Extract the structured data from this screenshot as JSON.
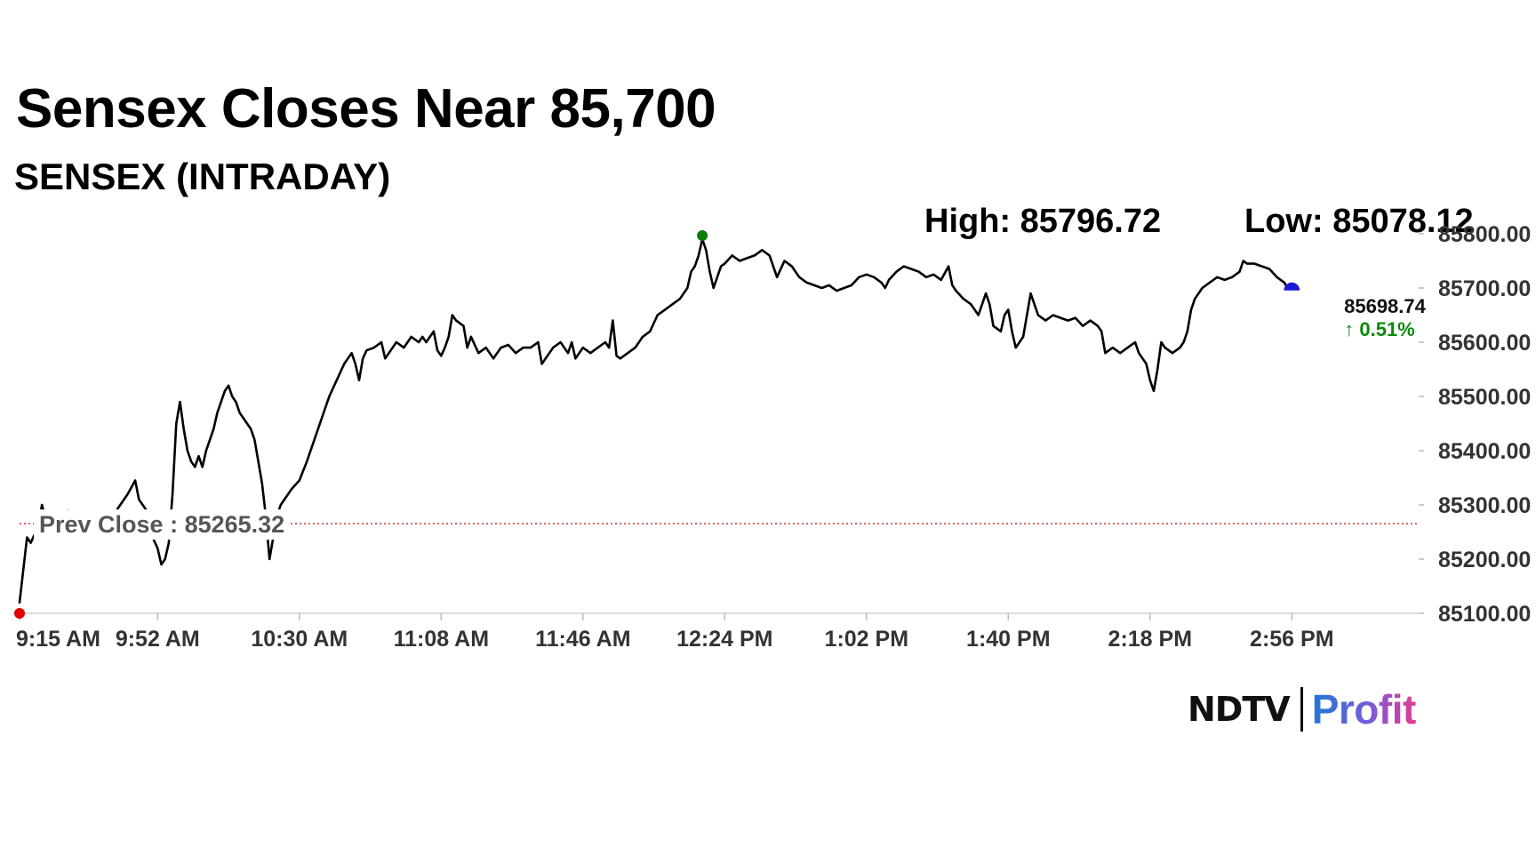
{
  "header": {
    "title": "Sensex Closes Near 85,700",
    "subtitle": "SENSEX (INTRADAY)",
    "high_label": "High: 85796.72",
    "low_label": "Low: 85078.12"
  },
  "logo": {
    "brand": "NDTV",
    "product": "Profit"
  },
  "chart_data": {
    "type": "line",
    "x_tick_labels": [
      "9:15 AM",
      "9:52 AM",
      "10:30 AM",
      "11:08 AM",
      "11:46 AM",
      "12:24 PM",
      "1:02 PM",
      "1:40 PM",
      "2:18 PM",
      "2:56 PM"
    ],
    "x_tick_minutes": [
      555,
      592,
      630,
      668,
      706,
      744,
      782,
      820,
      858,
      896
    ],
    "x_range_minutes": [
      555,
      930
    ],
    "ylim": [
      85100,
      85800
    ],
    "y_tick_values": [
      85100,
      85200,
      85300,
      85400,
      85500,
      85600,
      85700,
      85800
    ],
    "y_tick_labels": [
      "85100.00",
      "85200.00",
      "85300.00",
      "85400.00",
      "85500.00",
      "85600.00",
      "85700.00",
      "85800.00"
    ],
    "prev_close": 85265.32,
    "prev_close_label": "Prev Close : 85265.32",
    "last_value_label": "85698.74",
    "change_label": "↑ 0.51%",
    "series": [
      {
        "values": [
          [
            555,
            85120
          ],
          [
            556,
            85180
          ],
          [
            557,
            85240
          ],
          [
            558,
            85230
          ],
          [
            560,
            85260
          ],
          [
            561,
            85300
          ],
          [
            562,
            85275
          ],
          [
            564,
            85250
          ],
          [
            566,
            85262
          ],
          [
            568,
            85290
          ],
          [
            570,
            85270
          ],
          [
            572,
            85265
          ],
          [
            574,
            85285
          ],
          [
            576,
            85270
          ],
          [
            578,
            85260
          ],
          [
            580,
            85280
          ],
          [
            582,
            85300
          ],
          [
            584,
            85320
          ],
          [
            586,
            85345
          ],
          [
            587,
            85310
          ],
          [
            589,
            85290
          ],
          [
            590,
            85250
          ],
          [
            592,
            85220
          ],
          [
            593,
            85190
          ],
          [
            594,
            85200
          ],
          [
            595,
            85230
          ],
          [
            596,
            85320
          ],
          [
            597,
            85450
          ],
          [
            598,
            85490
          ],
          [
            599,
            85440
          ],
          [
            600,
            85400
          ],
          [
            601,
            85380
          ],
          [
            602,
            85370
          ],
          [
            603,
            85390
          ],
          [
            604,
            85370
          ],
          [
            605,
            85400
          ],
          [
            606,
            85420
          ],
          [
            607,
            85440
          ],
          [
            608,
            85470
          ],
          [
            609,
            85490
          ],
          [
            610,
            85510
          ],
          [
            611,
            85520
          ],
          [
            612,
            85500
          ],
          [
            613,
            85490
          ],
          [
            614,
            85470
          ],
          [
            615,
            85460
          ],
          [
            616,
            85450
          ],
          [
            617,
            85440
          ],
          [
            618,
            85420
          ],
          [
            619,
            85380
          ],
          [
            620,
            85340
          ],
          [
            621,
            85280
          ],
          [
            622,
            85200
          ],
          [
            623,
            85240
          ],
          [
            624,
            85280
          ],
          [
            625,
            85300
          ],
          [
            626,
            85310
          ],
          [
            627,
            85320
          ],
          [
            628,
            85330
          ],
          [
            630,
            85345
          ],
          [
            632,
            85380
          ],
          [
            634,
            85420
          ],
          [
            636,
            85460
          ],
          [
            638,
            85500
          ],
          [
            640,
            85530
          ],
          [
            642,
            85560
          ],
          [
            644,
            85580
          ],
          [
            645,
            85560
          ],
          [
            646,
            85530
          ],
          [
            647,
            85570
          ],
          [
            648,
            85585
          ],
          [
            650,
            85590
          ],
          [
            652,
            85600
          ],
          [
            653,
            85570
          ],
          [
            654,
            85580
          ],
          [
            656,
            85600
          ],
          [
            658,
            85590
          ],
          [
            660,
            85610
          ],
          [
            662,
            85600
          ],
          [
            663,
            85610
          ],
          [
            664,
            85600
          ],
          [
            666,
            85620
          ],
          [
            667,
            85585
          ],
          [
            668,
            85575
          ],
          [
            669,
            85590
          ],
          [
            670,
            85610
          ],
          [
            671,
            85650
          ],
          [
            672,
            85640
          ],
          [
            674,
            85630
          ],
          [
            675,
            85590
          ],
          [
            676,
            85610
          ],
          [
            678,
            85580
          ],
          [
            680,
            85590
          ],
          [
            682,
            85570
          ],
          [
            684,
            85590
          ],
          [
            686,
            85595
          ],
          [
            688,
            85580
          ],
          [
            690,
            85590
          ],
          [
            692,
            85590
          ],
          [
            694,
            85600
          ],
          [
            695,
            85560
          ],
          [
            696,
            85570
          ],
          [
            698,
            85590
          ],
          [
            700,
            85600
          ],
          [
            702,
            85580
          ],
          [
            703,
            85600
          ],
          [
            704,
            85570
          ],
          [
            706,
            85590
          ],
          [
            708,
            85580
          ],
          [
            710,
            85590
          ],
          [
            712,
            85600
          ],
          [
            713,
            85590
          ],
          [
            714,
            85640
          ],
          [
            715,
            85575
          ],
          [
            716,
            85570
          ],
          [
            718,
            85580
          ],
          [
            720,
            85590
          ],
          [
            722,
            85610
          ],
          [
            724,
            85620
          ],
          [
            726,
            85650
          ],
          [
            728,
            85660
          ],
          [
            730,
            85670
          ],
          [
            732,
            85680
          ],
          [
            734,
            85700
          ],
          [
            735,
            85730
          ],
          [
            736,
            85740
          ],
          [
            737,
            85760
          ],
          [
            738,
            85790
          ],
          [
            739,
            85770
          ],
          [
            740,
            85730
          ],
          [
            741,
            85700
          ],
          [
            742,
            85720
          ],
          [
            743,
            85740
          ],
          [
            744,
            85745
          ],
          [
            746,
            85760
          ],
          [
            748,
            85750
          ],
          [
            750,
            85755
          ],
          [
            752,
            85760
          ],
          [
            754,
            85770
          ],
          [
            756,
            85760
          ],
          [
            757,
            85740
          ],
          [
            758,
            85720
          ],
          [
            760,
            85750
          ],
          [
            762,
            85740
          ],
          [
            764,
            85720
          ],
          [
            766,
            85710
          ],
          [
            768,
            85705
          ],
          [
            770,
            85700
          ],
          [
            772,
            85705
          ],
          [
            774,
            85695
          ],
          [
            776,
            85700
          ],
          [
            778,
            85705
          ],
          [
            780,
            85720
          ],
          [
            782,
            85725
          ],
          [
            784,
            85720
          ],
          [
            786,
            85710
          ],
          [
            787,
            85700
          ],
          [
            788,
            85715
          ],
          [
            790,
            85730
          ],
          [
            792,
            85740
          ],
          [
            794,
            85735
          ],
          [
            796,
            85730
          ],
          [
            798,
            85720
          ],
          [
            800,
            85725
          ],
          [
            802,
            85715
          ],
          [
            804,
            85740
          ],
          [
            805,
            85705
          ],
          [
            806,
            85695
          ],
          [
            808,
            85680
          ],
          [
            810,
            85670
          ],
          [
            812,
            85650
          ],
          [
            814,
            85690
          ],
          [
            815,
            85670
          ],
          [
            816,
            85630
          ],
          [
            818,
            85620
          ],
          [
            819,
            85650
          ],
          [
            820,
            85660
          ],
          [
            821,
            85620
          ],
          [
            822,
            85590
          ],
          [
            824,
            85610
          ],
          [
            826,
            85690
          ],
          [
            827,
            85670
          ],
          [
            828,
            85650
          ],
          [
            830,
            85640
          ],
          [
            832,
            85650
          ],
          [
            834,
            85645
          ],
          [
            836,
            85640
          ],
          [
            838,
            85645
          ],
          [
            840,
            85630
          ],
          [
            842,
            85640
          ],
          [
            844,
            85630
          ],
          [
            845,
            85620
          ],
          [
            846,
            85580
          ],
          [
            848,
            85590
          ],
          [
            850,
            85580
          ],
          [
            852,
            85590
          ],
          [
            854,
            85600
          ],
          [
            855,
            85580
          ],
          [
            856,
            85570
          ],
          [
            857,
            85560
          ],
          [
            858,
            85530
          ],
          [
            859,
            85510
          ],
          [
            860,
            85550
          ],
          [
            861,
            85600
          ],
          [
            862,
            85590
          ],
          [
            864,
            85580
          ],
          [
            866,
            85590
          ],
          [
            867,
            85600
          ],
          [
            868,
            85620
          ],
          [
            869,
            85660
          ],
          [
            870,
            85680
          ],
          [
            872,
            85700
          ],
          [
            874,
            85710
          ],
          [
            876,
            85720
          ],
          [
            878,
            85715
          ],
          [
            880,
            85720
          ],
          [
            882,
            85730
          ],
          [
            883,
            85750
          ],
          [
            884,
            85745
          ],
          [
            886,
            85745
          ],
          [
            888,
            85740
          ],
          [
            890,
            85735
          ],
          [
            892,
            85720
          ],
          [
            894,
            85710
          ],
          [
            895,
            85698
          ],
          [
            896,
            85700
          ]
        ]
      }
    ],
    "markers": {
      "open": [
        555,
        85100
      ],
      "high": [
        738,
        85796.72
      ],
      "close": [
        896,
        85698.74
      ]
    },
    "colors": {
      "line": "#000000",
      "open_marker": "#e00000",
      "high_marker": "#0a7d0a",
      "close_marker": "#1a1ad6",
      "prev_close_line": "#cc3333",
      "change_positive": "#0a8a0a"
    }
  }
}
